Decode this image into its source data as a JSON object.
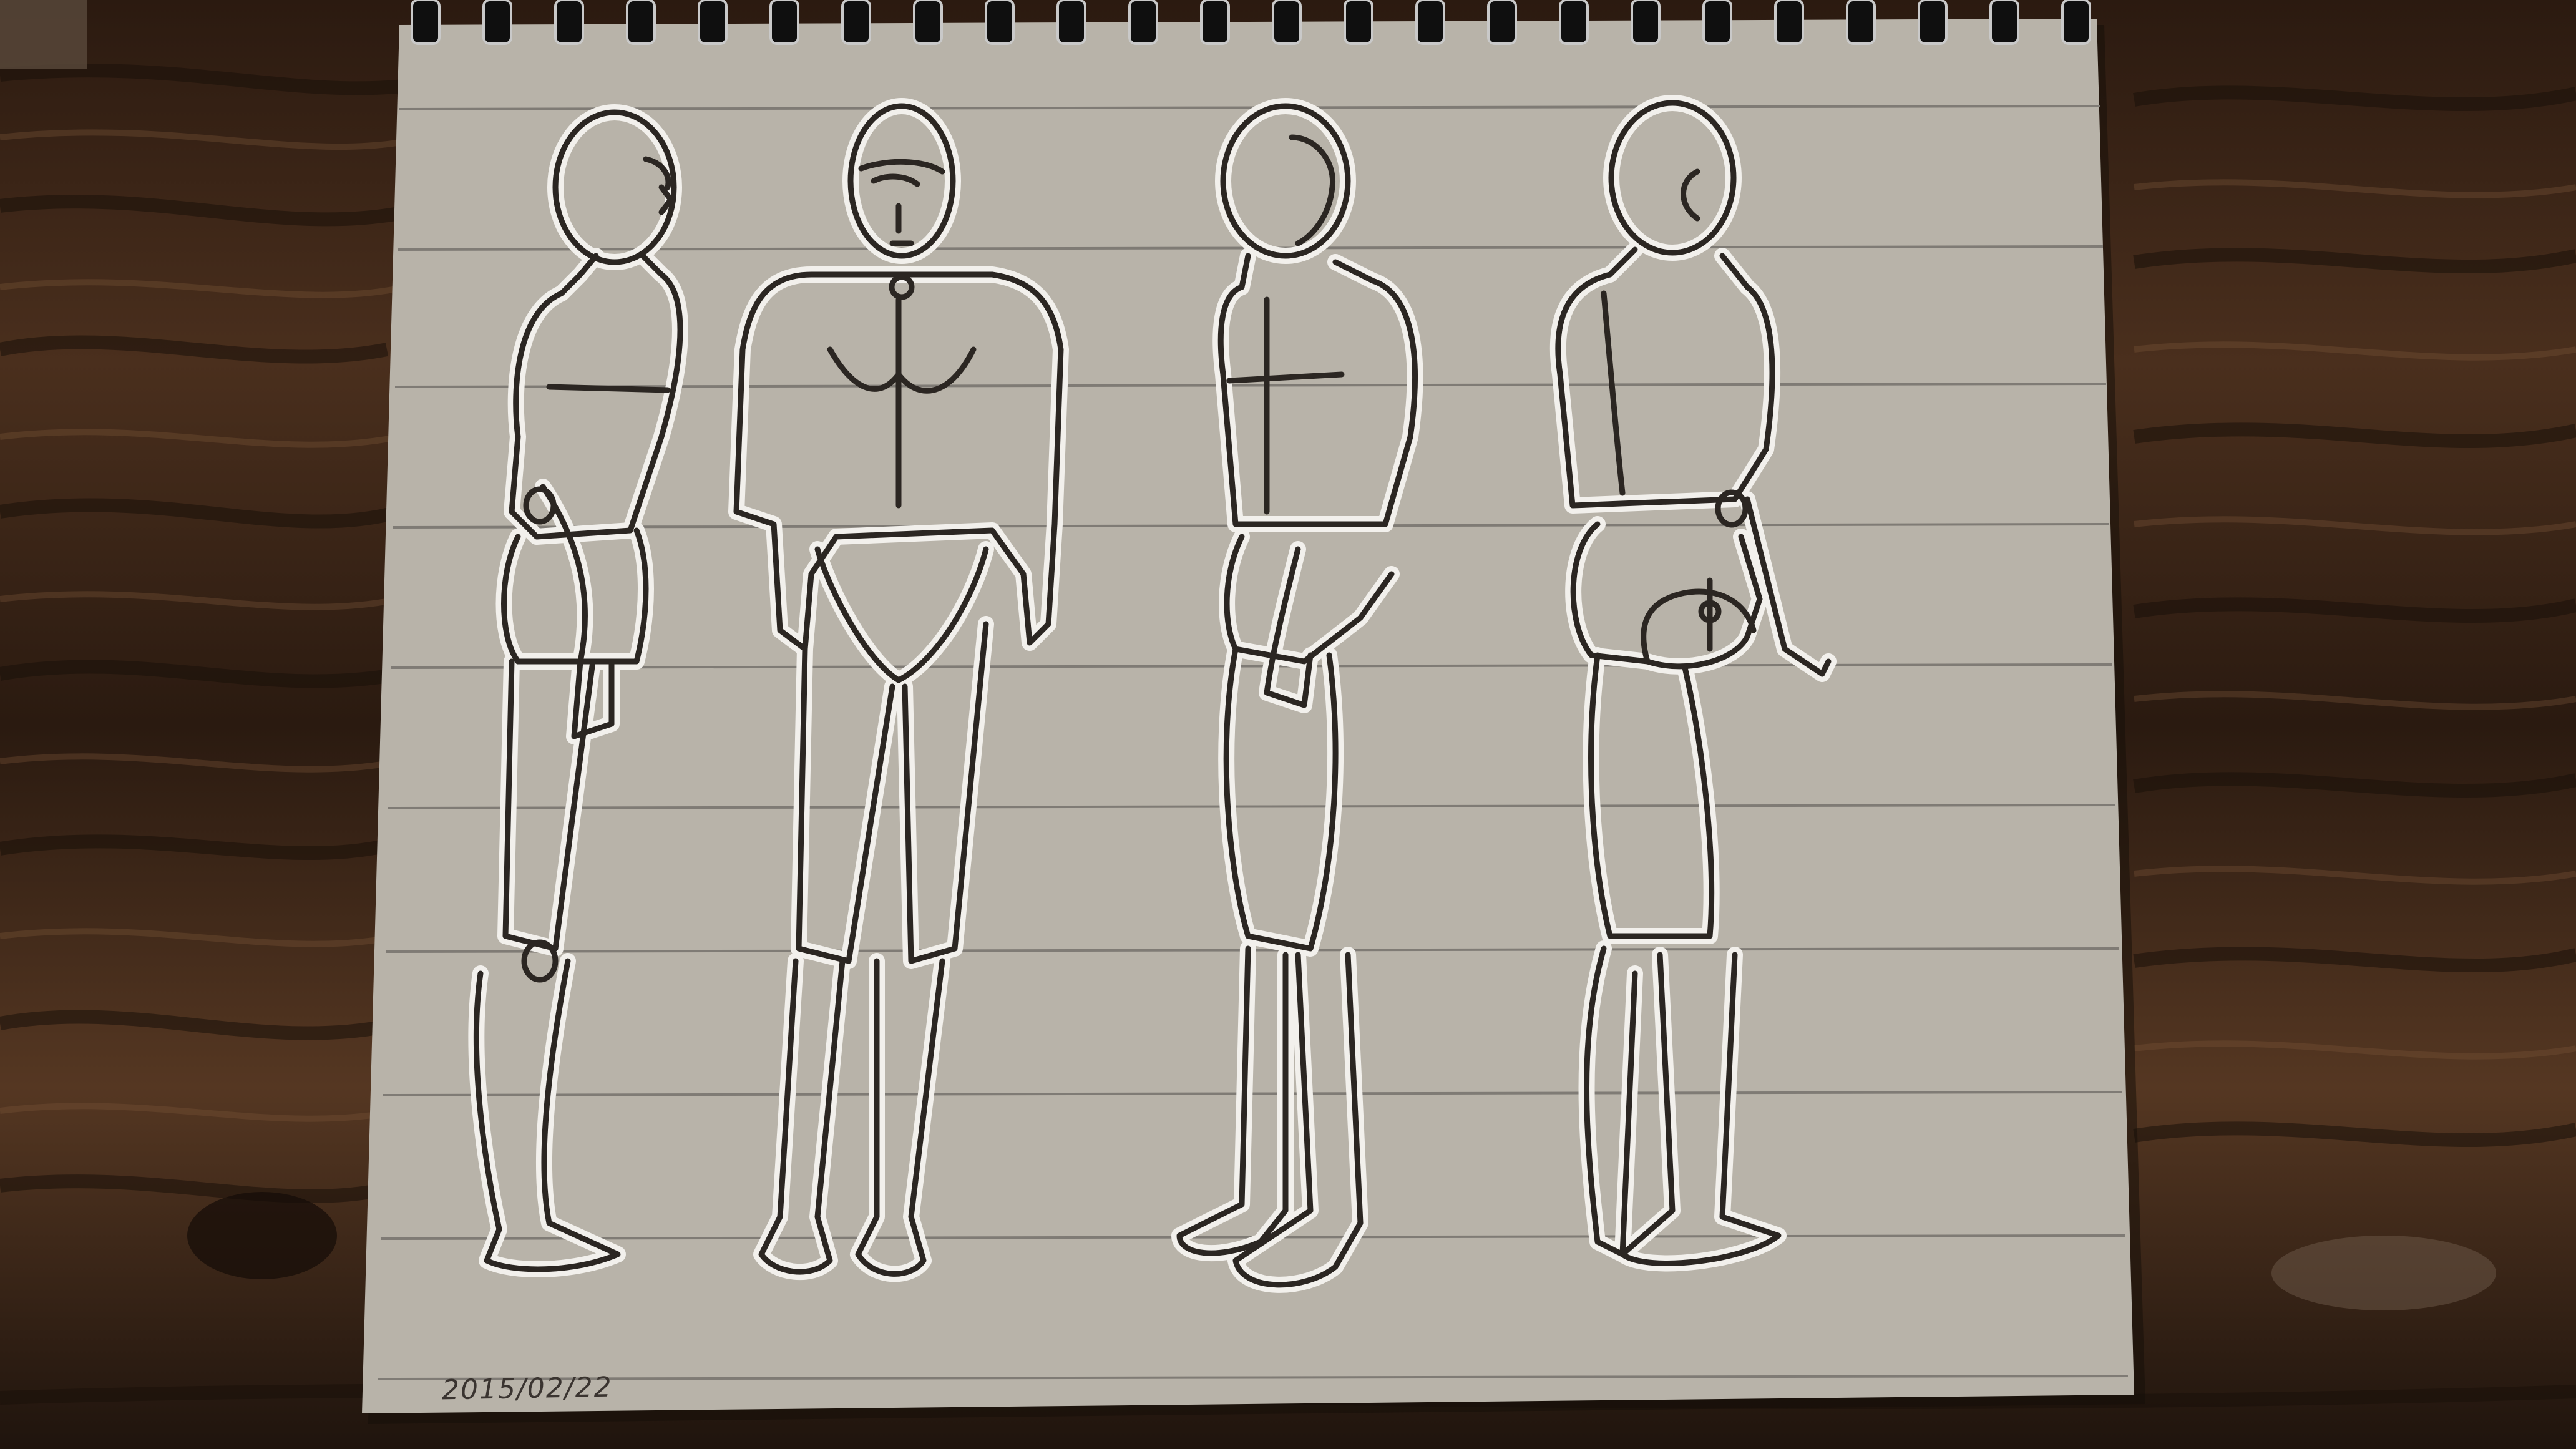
{
  "photo": {
    "subject": "pencil-and-ink-figure-drawing",
    "date_note": "2015/02/22"
  },
  "colors": {
    "wood_dark": "#1c120c",
    "wood_mid": "#4a2f1d",
    "wood_light": "#6b4a33",
    "paper": "#b9b4aa",
    "paper_line": "#7d7a74",
    "ink": "#2b2622",
    "highlight": "#f2f0ec"
  },
  "icons": {
    "spiral_binding": "spiral-binding-icon",
    "figure_side": "figure-side-view-icon",
    "figure_front": "figure-front-view-icon",
    "figure_three_quarter": "figure-three-quarter-view-icon",
    "figure_back": "figure-back-three-quarter-view-icon"
  }
}
